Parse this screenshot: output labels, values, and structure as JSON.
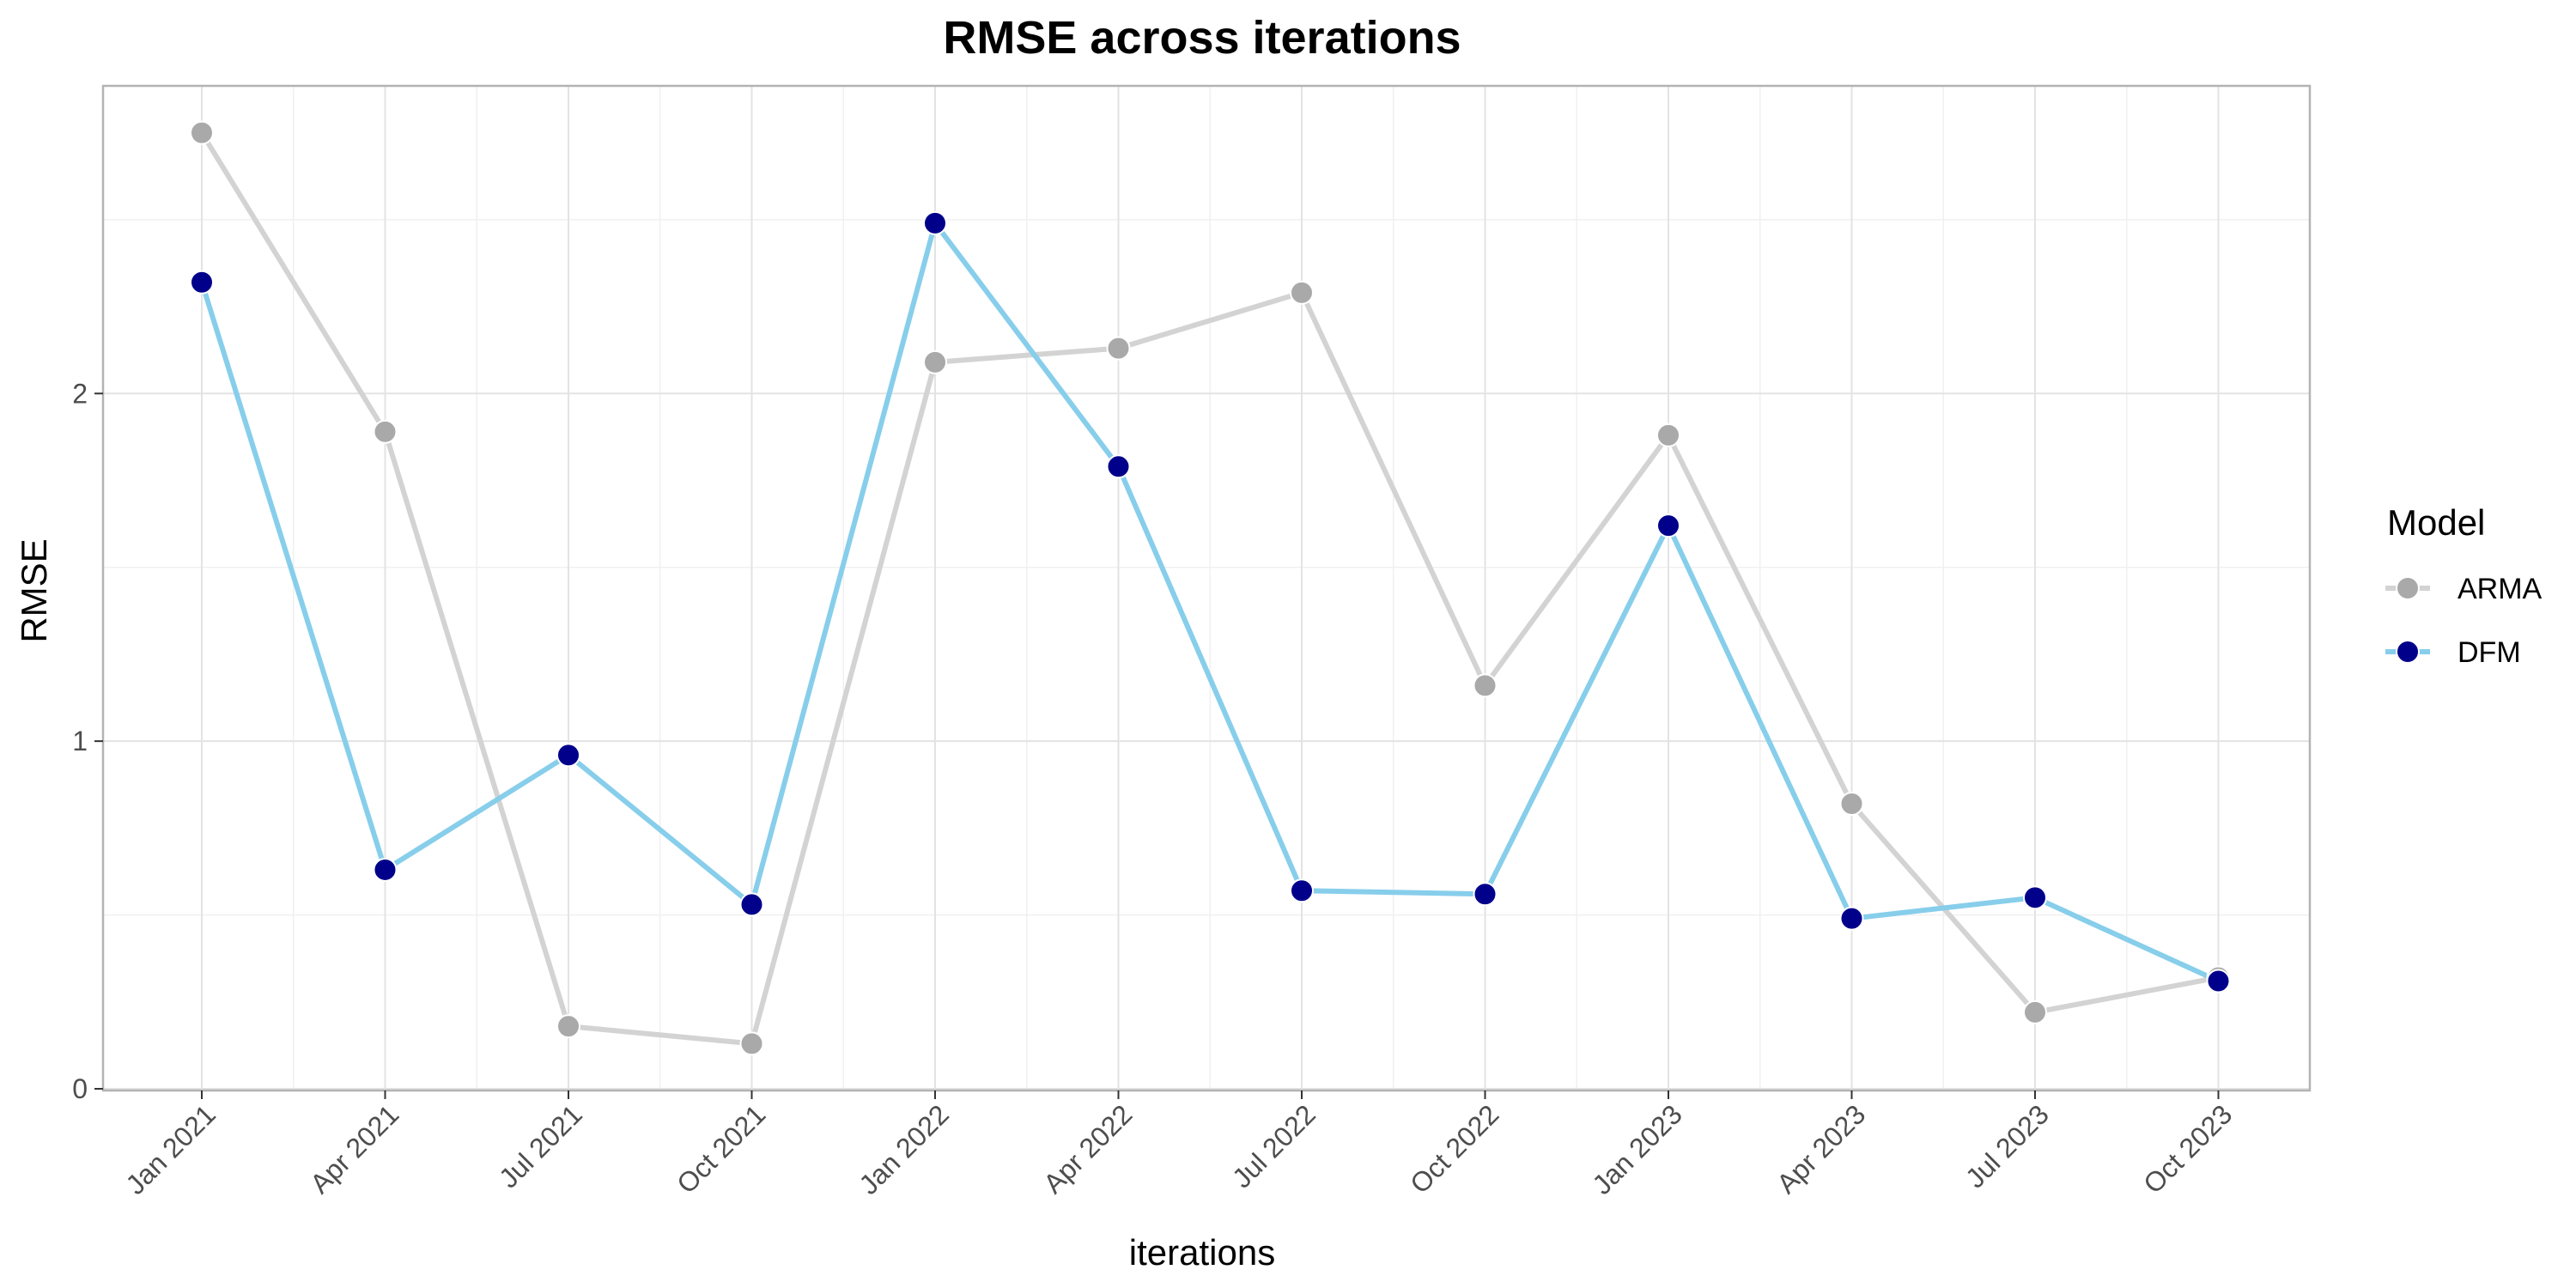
{
  "chart_data": {
    "type": "line",
    "title": "RMSE across iterations",
    "xlabel": "iterations",
    "ylabel": "RMSE",
    "categories": [
      "Jan 2021",
      "Apr 2021",
      "Jul 2021",
      "Oct 2021",
      "Jan 2022",
      "Apr 2022",
      "Jul 2022",
      "Oct 2022",
      "Jan 2023",
      "Apr 2023",
      "Jul 2023",
      "Oct 2023"
    ],
    "ylim": [
      0,
      2.88
    ],
    "yticks": [
      0,
      1,
      2
    ],
    "grid": true,
    "legend": {
      "title": "Model",
      "position": "right"
    },
    "series": [
      {
        "name": "ARMA",
        "line_color": "#d3d3d3",
        "point_color": "#a9a9a9",
        "values": [
          2.75,
          1.89,
          0.18,
          0.13,
          2.09,
          2.13,
          2.29,
          1.16,
          1.88,
          0.82,
          0.22,
          0.32
        ]
      },
      {
        "name": "DFM",
        "line_color": "#87ceeb",
        "point_color": "#00008b",
        "values": [
          2.32,
          0.63,
          0.96,
          0.53,
          2.49,
          1.79,
          0.57,
          0.56,
          1.62,
          0.49,
          0.55,
          0.31
        ]
      }
    ]
  }
}
